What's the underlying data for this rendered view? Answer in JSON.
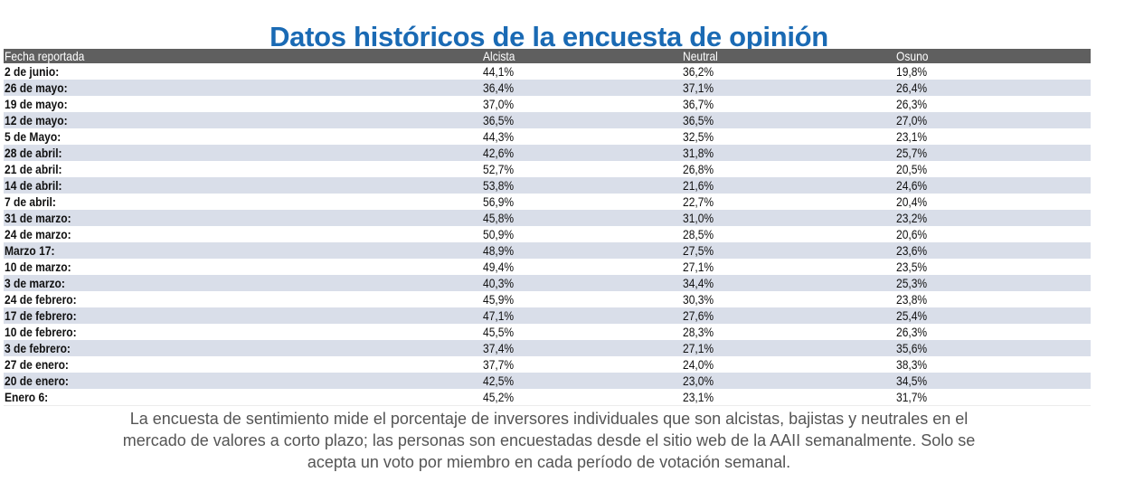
{
  "title": "Datos históricos de la encuesta de opinión",
  "table": {
    "headers": [
      "Fecha reportada",
      "Alcista",
      "Neutral",
      "Osuno"
    ],
    "rows": [
      [
        "2 de junio:",
        "44,1%",
        "36,2%",
        "19,8%"
      ],
      [
        "26 de mayo:",
        "36,4%",
        "37,1%",
        "26,4%"
      ],
      [
        "19 de mayo:",
        "37,0%",
        "36,7%",
        "26,3%"
      ],
      [
        "12 de mayo:",
        "36,5%",
        "36,5%",
        "27,0%"
      ],
      [
        "5 de Mayo:",
        "44,3%",
        "32,5%",
        "23,1%"
      ],
      [
        "28 de abril:",
        "42,6%",
        "31,8%",
        "25,7%"
      ],
      [
        "21 de abril:",
        "52,7%",
        "26,8%",
        "20,5%"
      ],
      [
        "14 de abril:",
        "53,8%",
        "21,6%",
        "24,6%"
      ],
      [
        "7 de abril:",
        "56,9%",
        "22,7%",
        "20,4%"
      ],
      [
        "31 de marzo:",
        "45,8%",
        "31,0%",
        "23,2%"
      ],
      [
        "24 de marzo:",
        "50,9%",
        "28,5%",
        "20,6%"
      ],
      [
        "Marzo 17:",
        "48,9%",
        "27,5%",
        "23,6%"
      ],
      [
        "10 de marzo:",
        "49,4%",
        "27,1%",
        "23,5%"
      ],
      [
        "3 de marzo:",
        "40,3%",
        "34,4%",
        "25,3%"
      ],
      [
        "24 de febrero:",
        "45,9%",
        "30,3%",
        "23,8%"
      ],
      [
        "17 de febrero:",
        "47,1%",
        "27,6%",
        "25,4%"
      ],
      [
        "10 de febrero:",
        "45,5%",
        "28,3%",
        "26,3%"
      ],
      [
        "3 de febrero:",
        "37,4%",
        "27,1%",
        "35,6%"
      ],
      [
        "27 de enero:",
        "37,7%",
        "24,0%",
        "38,3%"
      ],
      [
        "20 de enero:",
        "42,5%",
        "23,0%",
        "34,5%"
      ],
      [
        "Enero 6:",
        "45,2%",
        "23,1%",
        "31,7%"
      ]
    ]
  },
  "footer": {
    "line1": "La encuesta de sentimiento mide el porcentaje de inversores individuales que son alcistas, bajistas y neutrales en el",
    "line2": "mercado de valores a corto plazo; las personas son encuestadas desde el sitio web de la AAII semanalmente. Solo se",
    "line3": "acepta un voto por miembro en cada período de votación semanal."
  },
  "colors": {
    "title": "#1a6ab4",
    "header_bg": "#5f5f5f",
    "alt_row_bg": "#d9dee9",
    "footer_text": "#555555"
  }
}
